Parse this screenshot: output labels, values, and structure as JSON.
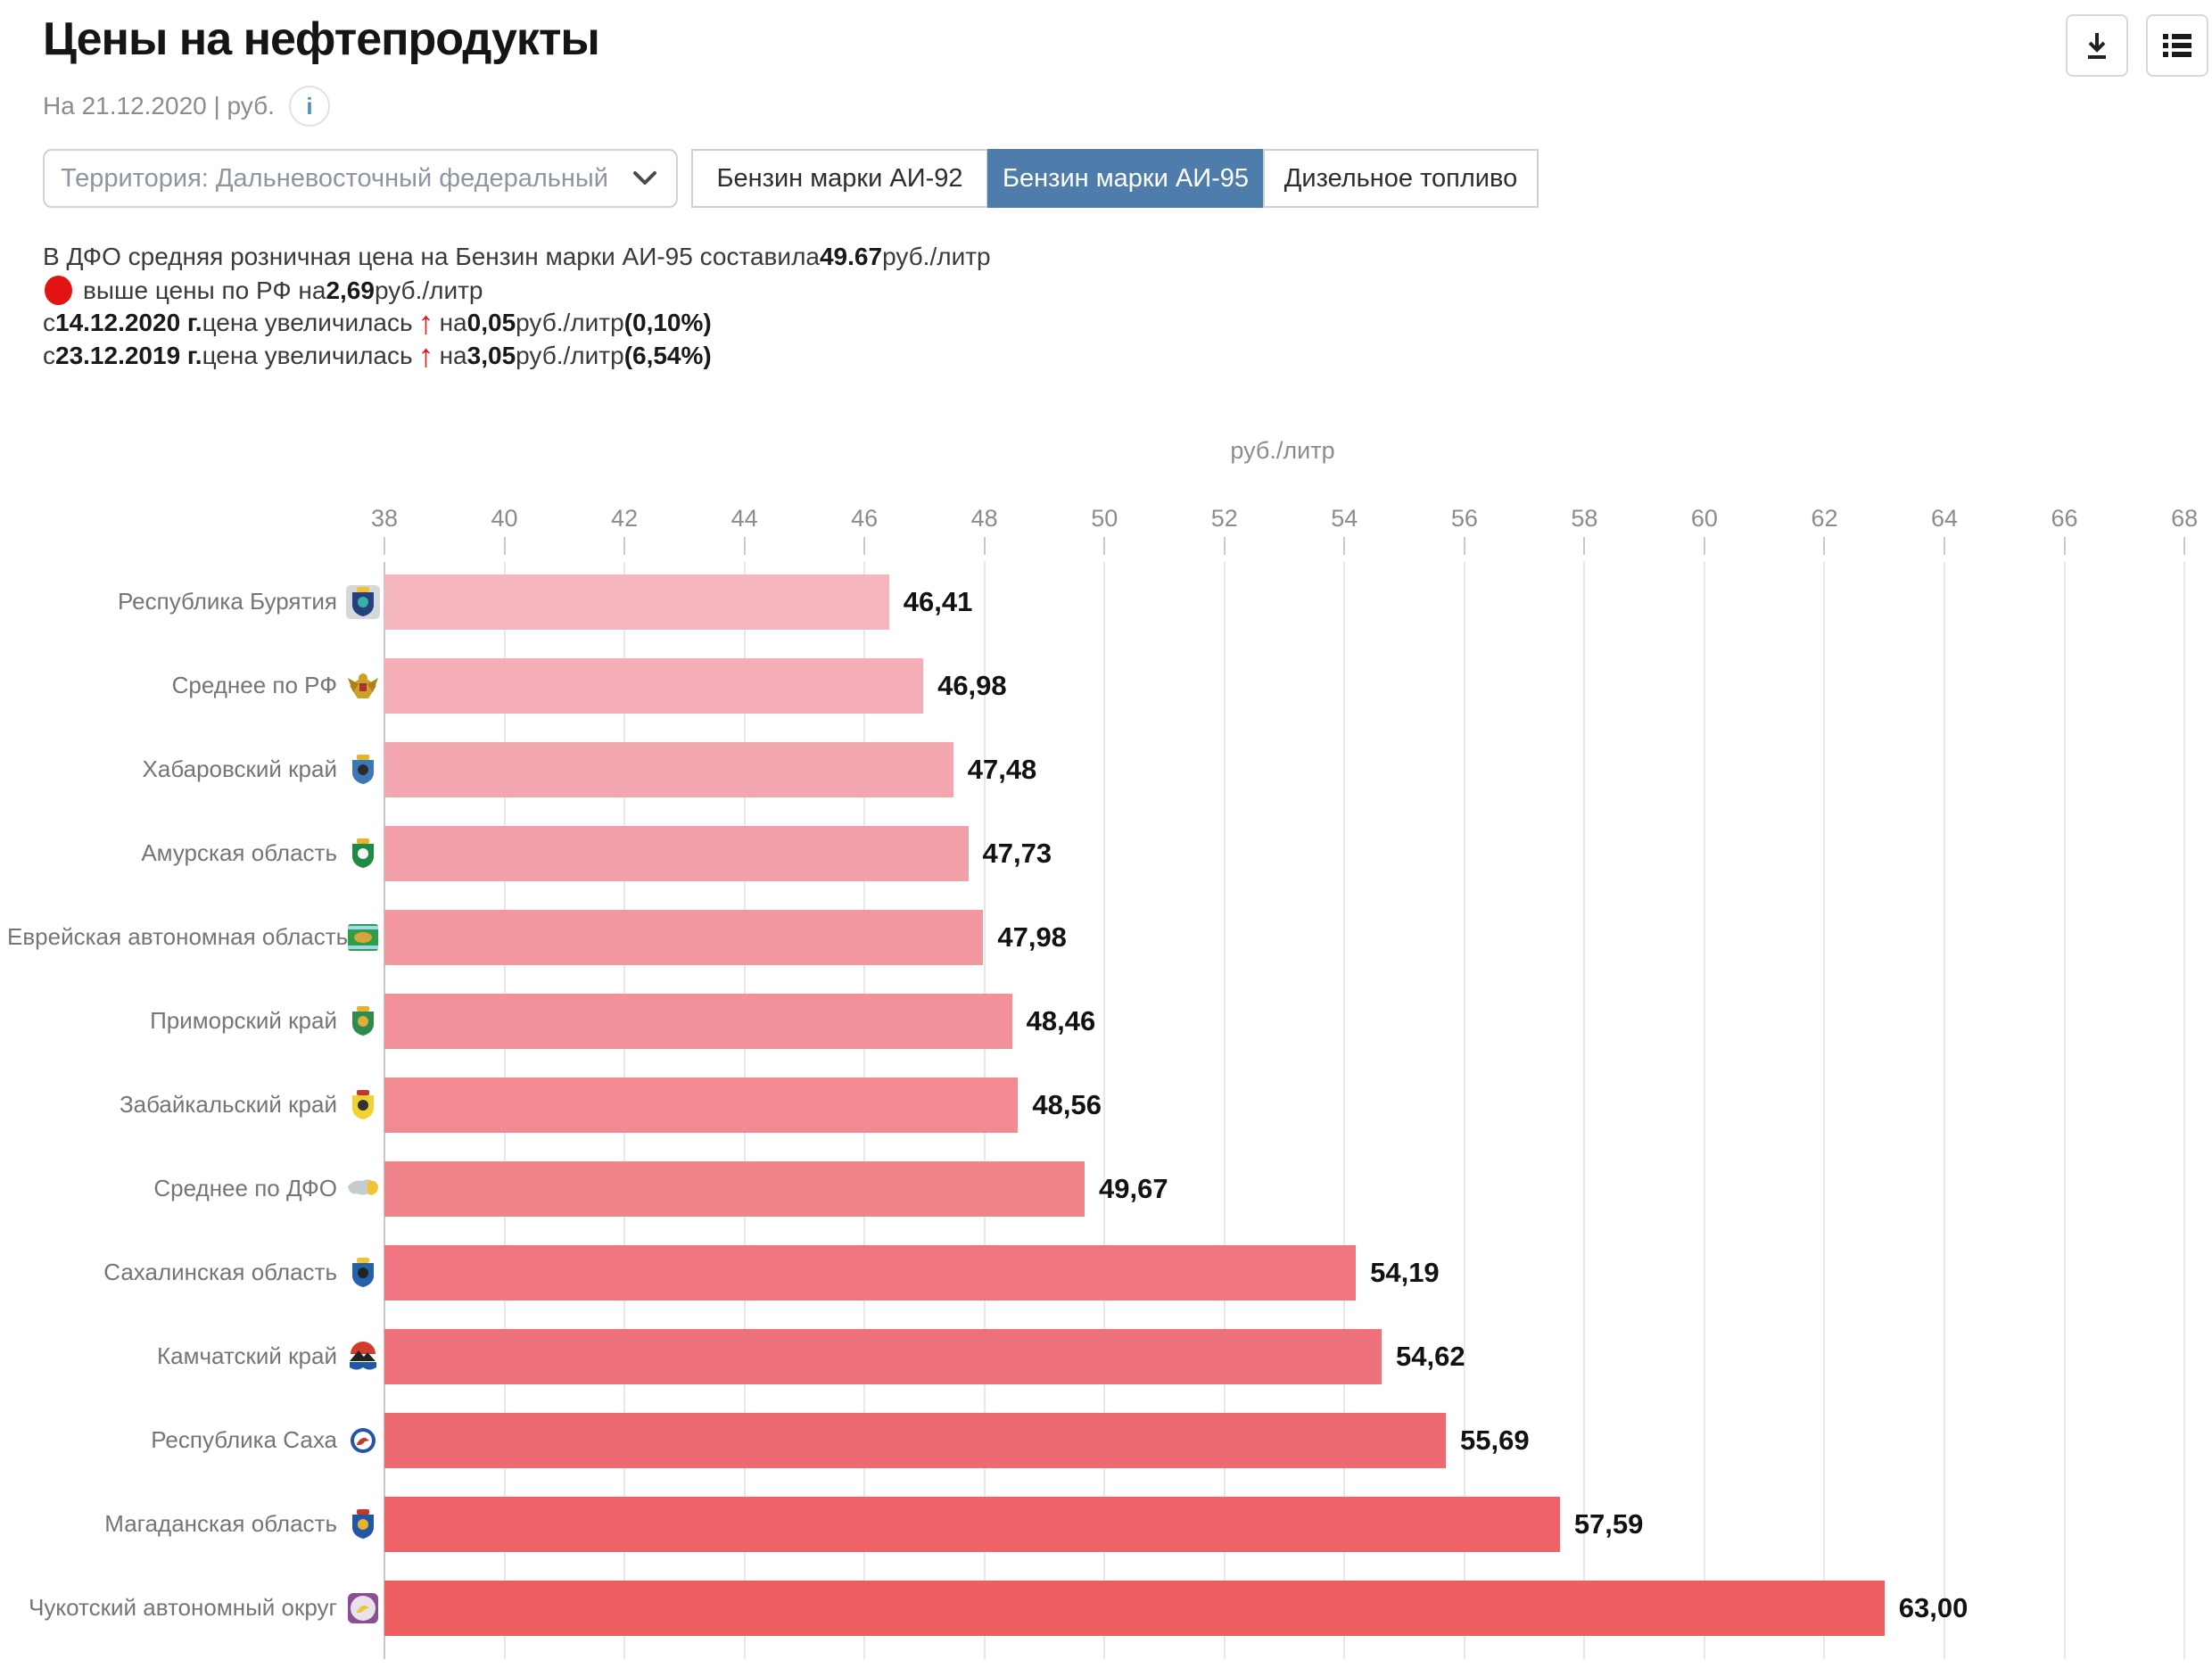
{
  "header": {
    "title": "Цены на нефтепродукты",
    "subtitle": "На 21.12.2020 | руб.",
    "info_label": "i"
  },
  "toolbar": {
    "download_icon": "download-icon",
    "list_icon": "list-view-icon"
  },
  "filters": {
    "territory_value": "Территория: Дальневосточный федеральный",
    "tabs": [
      {
        "label": "Бензин марки АИ-92",
        "active": false
      },
      {
        "label": "Бензин марки АИ-95",
        "active": true
      },
      {
        "label": "Дизельное топливо",
        "active": false
      }
    ],
    "active_tab_color": "#4e7dab"
  },
  "summary": {
    "accent_red": "#e31313",
    "lines": [
      {
        "segments": [
          {
            "t": "В ДФО средняя розничная цена на Бензин марки АИ-95 составила "
          },
          {
            "t": "49.67",
            "b": 1
          },
          {
            "t": " руб./литр"
          }
        ]
      },
      {
        "segments": [
          {
            "icon": "dot"
          },
          {
            "t": "выше цены по РФ на "
          },
          {
            "t": "2,69",
            "b": 1
          },
          {
            "t": " руб./литр"
          }
        ]
      },
      {
        "segments": [
          {
            "t": "с "
          },
          {
            "t": "14.12.2020 г.",
            "b": 1
          },
          {
            "t": " цена увеличилась "
          },
          {
            "icon": "arrow"
          },
          {
            "t": " на "
          },
          {
            "t": "0,05",
            "b": 1
          },
          {
            "t": " руб./литр "
          },
          {
            "t": "(0,10%)",
            "b": 1
          }
        ]
      },
      {
        "segments": [
          {
            "t": "с "
          },
          {
            "t": "23.12.2019 г.",
            "b": 1
          },
          {
            "t": " цена увеличилась "
          },
          {
            "icon": "arrow"
          },
          {
            "t": " на "
          },
          {
            "t": "3,05",
            "b": 1
          },
          {
            "t": " руб./литр "
          },
          {
            "t": "(6,54%)",
            "b": 1
          }
        ]
      }
    ]
  },
  "chart_data": {
    "type": "bar",
    "orientation": "horizontal",
    "axis_title": "руб./литр",
    "xlim": [
      38,
      68
    ],
    "x_ticks": [
      38,
      40,
      42,
      44,
      46,
      48,
      50,
      52,
      54,
      56,
      58,
      60,
      62,
      64,
      66,
      68
    ],
    "grid": true,
    "categories": [
      "Республика Бурятия",
      "Среднее по РФ",
      "Хабаровский край",
      "Амурская область",
      "Еврейская автономная область",
      "Приморский край",
      "Забайкальский край",
      "Среднее по ДФО",
      "Сахалинская область",
      "Камчатский край",
      "Республика Саха",
      "Магаданская область",
      "Чукотский автономный округ"
    ],
    "values": [
      46.41,
      46.98,
      47.48,
      47.73,
      47.98,
      48.46,
      48.56,
      49.67,
      54.19,
      54.62,
      55.69,
      57.59,
      63.0
    ],
    "value_labels": [
      "46,41",
      "46,98",
      "47,48",
      "47,73",
      "47,98",
      "48,46",
      "48,56",
      "49,67",
      "54,19",
      "54,62",
      "55,69",
      "57,59",
      "63,00"
    ],
    "bar_colors": [
      "#f5b6c0",
      "#f5aeb8",
      "#f4a6b0",
      "#f39fa8",
      "#f398a0",
      "#f29199",
      "#f28a92",
      "#f1838b",
      "#ef7681",
      "#ee707a",
      "#ee6a72",
      "#ee6368",
      "#ee5e60"
    ],
    "flags": [
      {
        "name": "flag-buryatia-icon",
        "style": "shield",
        "colors": [
          "#d6d9dc",
          "#25417d",
          "#f2c131",
          "#37b3a6"
        ]
      },
      {
        "name": "flag-russia-icon",
        "style": "emblem",
        "colors": [
          "#ffffff",
          "#c9a227",
          "#a8821c",
          "#b03030"
        ]
      },
      {
        "name": "flag-khabarovsk-icon",
        "style": "shield",
        "colors": [
          "#ffffff",
          "#3c78b4",
          "#e5b32c",
          "#2b2b2b"
        ]
      },
      {
        "name": "flag-amur-icon",
        "style": "shield",
        "colors": [
          "#ffffff",
          "#1e8a44",
          "#e5b32c",
          "#f4f4f4"
        ]
      },
      {
        "name": "flag-jewish-ao-icon",
        "style": "bandsrect",
        "colors": [
          "#2f9e4a",
          "#9fd8ef",
          "#d9a53a"
        ]
      },
      {
        "name": "flag-primorsky-icon",
        "style": "shield",
        "colors": [
          "#ffffff",
          "#2f8a4d",
          "#e5b32c",
          "#dcaf3a"
        ]
      },
      {
        "name": "flag-zabaykalsky-icon",
        "style": "shield",
        "colors": [
          "#ffffff",
          "#f2d22e",
          "#c0392b",
          "#333333"
        ]
      },
      {
        "name": "flag-dfo-map-icon",
        "style": "map",
        "colors": [
          "#ffffff",
          "#c6cbd0",
          "#f0c535"
        ]
      },
      {
        "name": "flag-sakhalin-icon",
        "style": "shield",
        "colors": [
          "#ffffff",
          "#2561a8",
          "#f0c535",
          "#222222"
        ]
      },
      {
        "name": "flag-kamchatka-icon",
        "style": "bands",
        "colors": [
          "#ffffff",
          "#d23c2e",
          "#222222",
          "#2456a8"
        ]
      },
      {
        "name": "flag-sakha-icon",
        "style": "ring",
        "colors": [
          "#ffffff",
          "#2456a8",
          "#ffffff",
          "#c0392b"
        ]
      },
      {
        "name": "flag-magadan-icon",
        "style": "shield",
        "colors": [
          "#ffffff",
          "#2456a8",
          "#c0392b",
          "#e5b32c"
        ]
      },
      {
        "name": "flag-chukotka-icon",
        "style": "ring",
        "colors": [
          "#8a4f93",
          "#e9e2ee",
          "#e9e2ee",
          "#f0c535"
        ]
      }
    ]
  }
}
